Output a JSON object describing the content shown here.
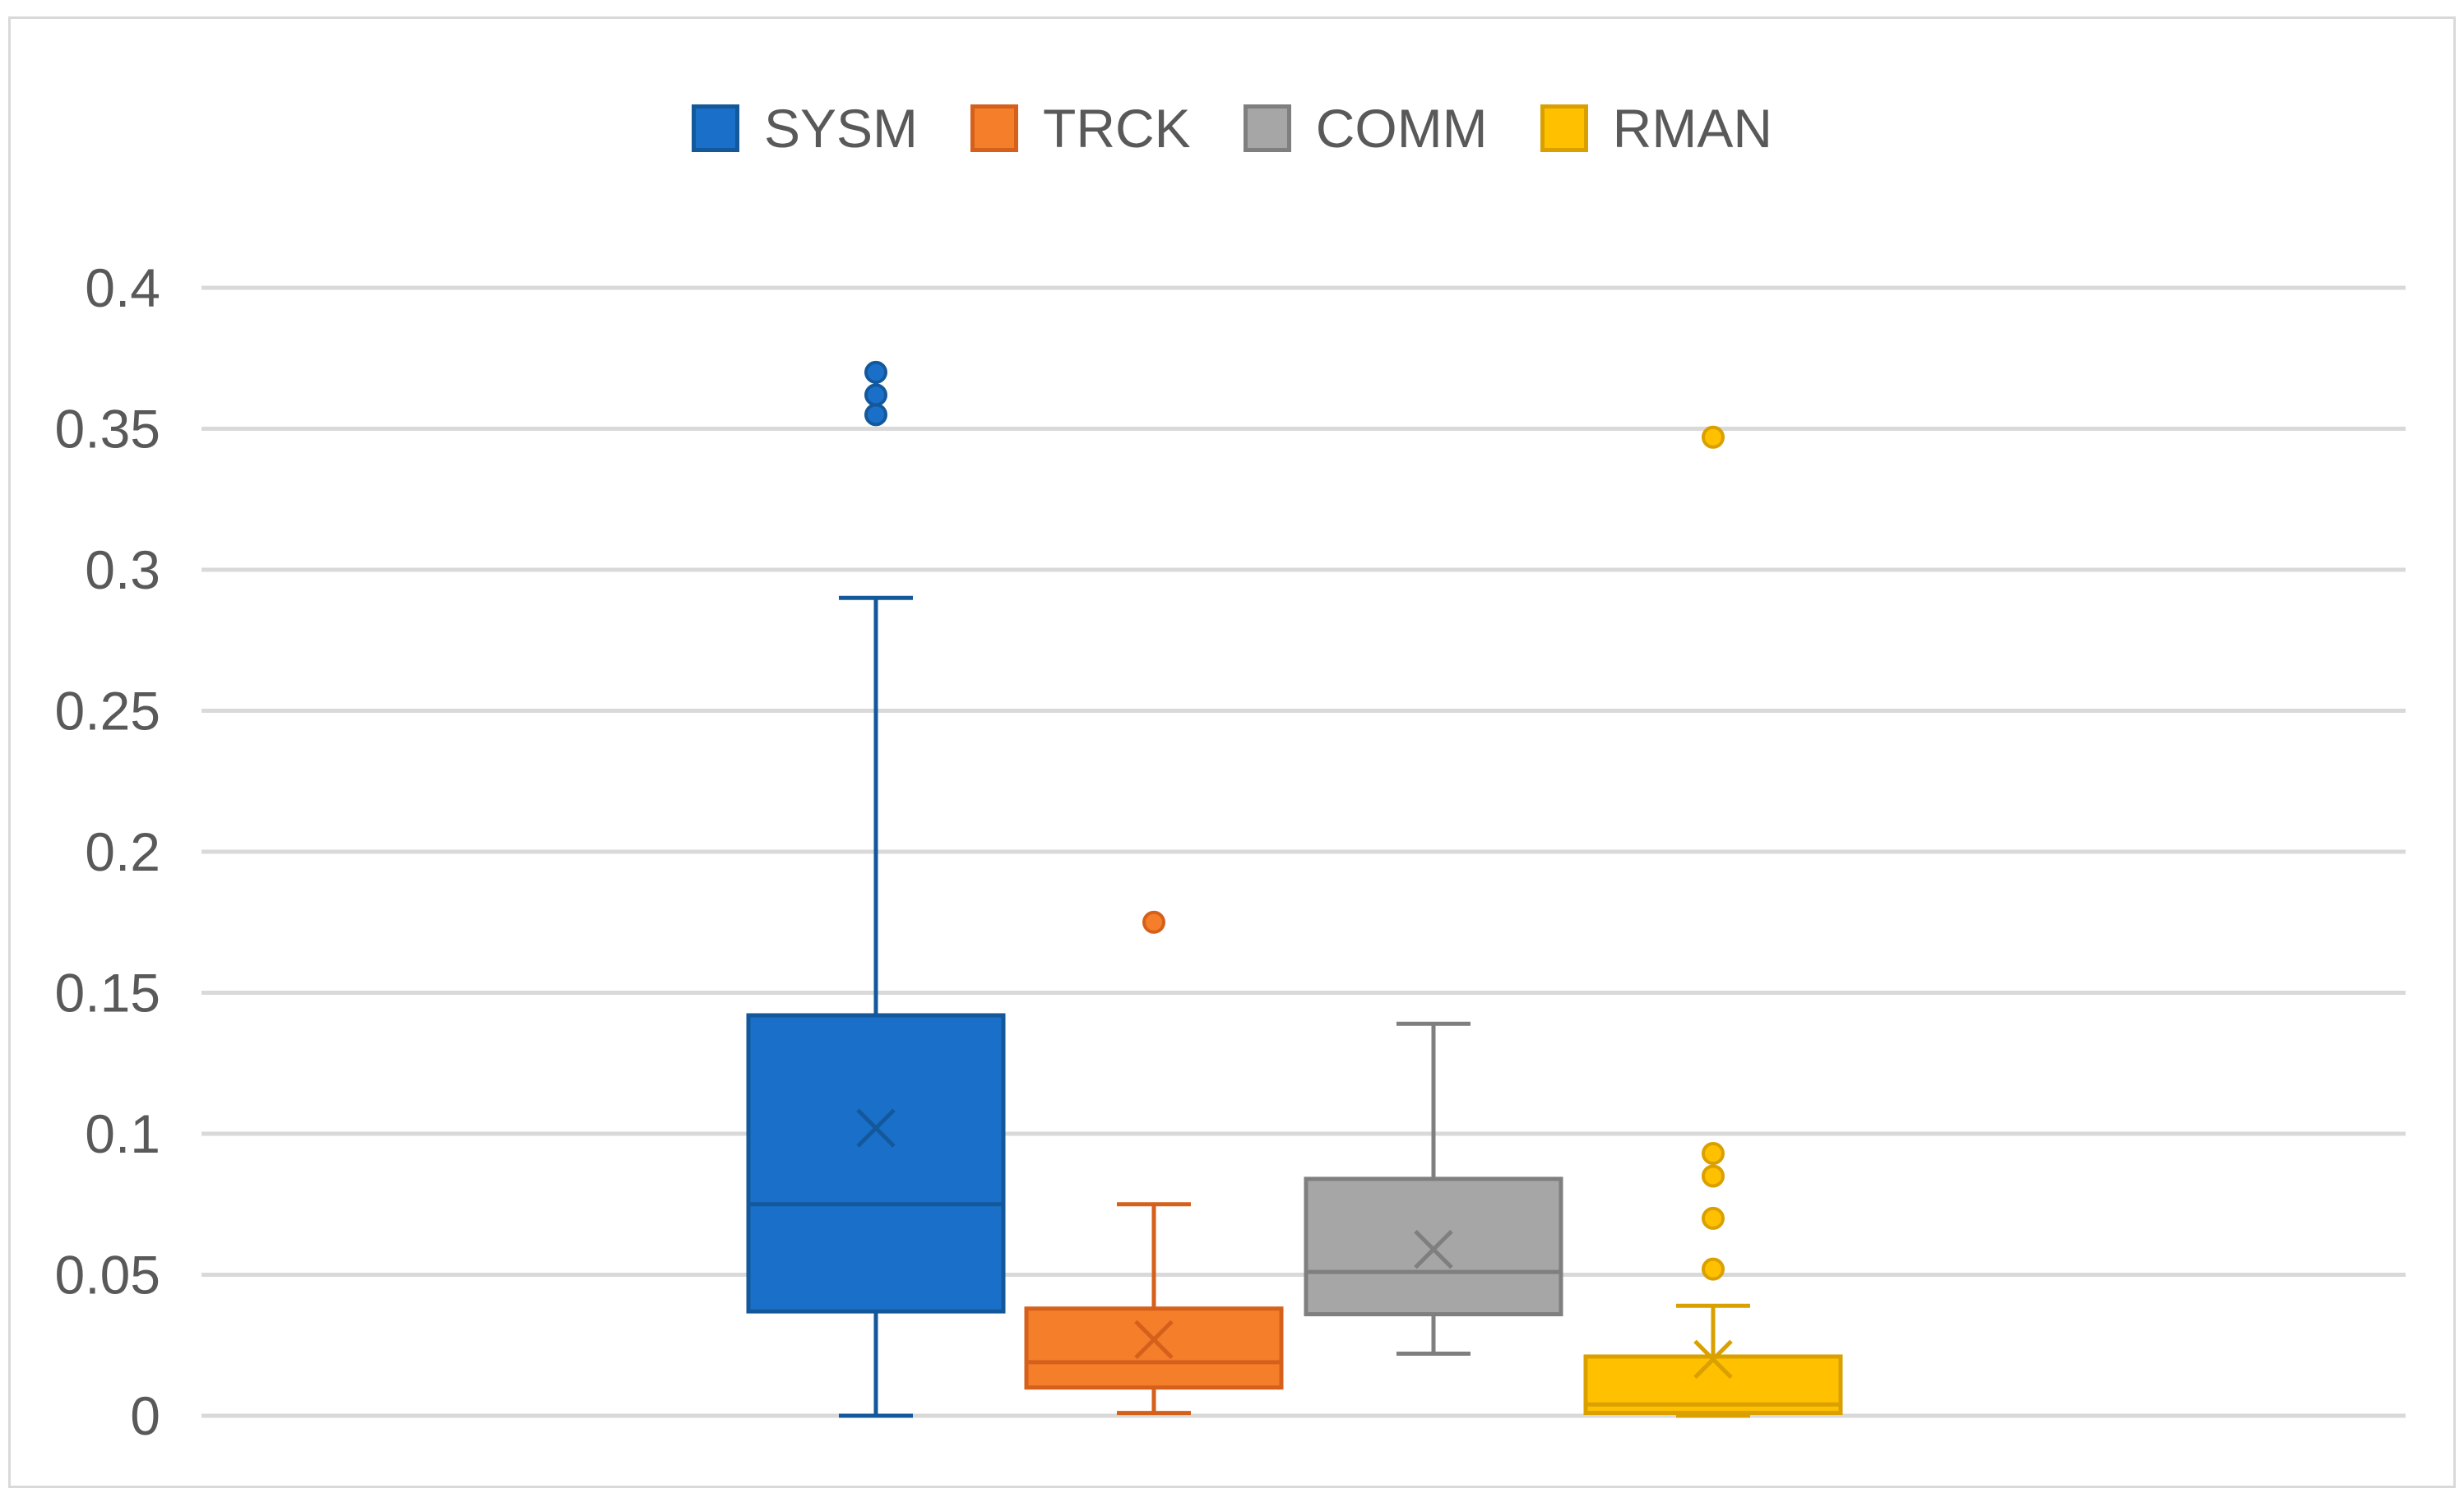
{
  "chart_data": {
    "type": "box",
    "title": "",
    "xlabel": "",
    "ylabel": "",
    "ylim": [
      0,
      0.4
    ],
    "yticks": [
      0,
      0.05,
      0.1,
      0.15,
      0.2,
      0.25,
      0.3,
      0.35,
      0.4
    ],
    "ytick_labels": [
      "0",
      "0.05",
      "0.1",
      "0.15",
      "0.2",
      "0.25",
      "0.3",
      "0.35",
      "0.4"
    ],
    "grid": true,
    "legend_position": "top-center",
    "series": [
      {
        "name": "SYSM",
        "color": "#1a70c8",
        "edge": "#14589c",
        "min": 0,
        "q1": 0.037,
        "median": 0.075,
        "q3": 0.142,
        "max": 0.29,
        "mean": 0.102,
        "outliers": [
          0.355,
          0.362,
          0.37
        ]
      },
      {
        "name": "TRCK",
        "color": "#f57e2a",
        "edge": "#d5601c",
        "min": 0.001,
        "q1": 0.01,
        "median": 0.019,
        "q3": 0.038,
        "max": 0.075,
        "mean": 0.027,
        "outliers": [
          0.175
        ]
      },
      {
        "name": "COMM",
        "color": "#a6a6a6",
        "edge": "#7f7f7f",
        "min": 0.022,
        "q1": 0.036,
        "median": 0.051,
        "q3": 0.084,
        "max": 0.139,
        "mean": 0.059,
        "outliers": []
      },
      {
        "name": "RMAN",
        "color": "#ffc000",
        "edge": "#d9a000",
        "min": 0,
        "q1": 0.001,
        "median": 0.004,
        "q3": 0.021,
        "max": 0.039,
        "mean": 0.02,
        "outliers": [
          0.052,
          0.07,
          0.085,
          0.093,
          0.347
        ]
      }
    ]
  }
}
